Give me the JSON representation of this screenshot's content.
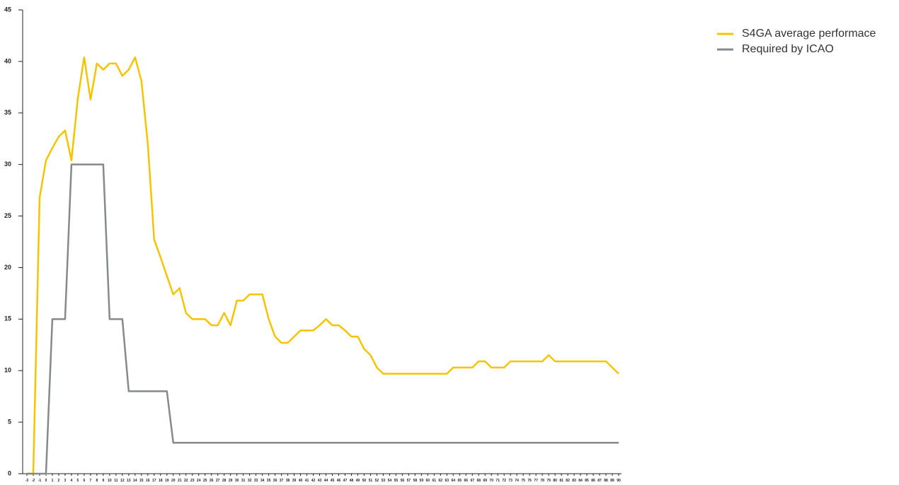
{
  "chart_data": {
    "type": "line",
    "x": [
      -3,
      -2,
      -1,
      0,
      1,
      2,
      3,
      4,
      5,
      6,
      7,
      8,
      9,
      10,
      11,
      12,
      13,
      14,
      15,
      16,
      17,
      18,
      19,
      20,
      21,
      22,
      23,
      24,
      25,
      26,
      27,
      28,
      29,
      30,
      31,
      32,
      33,
      34,
      35,
      36,
      37,
      38,
      39,
      40,
      41,
      42,
      43,
      44,
      45,
      46,
      47,
      48,
      49,
      50,
      51,
      52,
      53,
      54,
      55,
      56,
      57,
      58,
      59,
      60,
      61,
      62,
      63,
      64,
      65,
      66,
      67,
      68,
      69,
      70,
      71,
      72,
      73,
      74,
      75,
      76,
      77,
      78,
      79,
      80,
      81,
      82,
      83,
      84,
      85,
      86,
      87,
      88,
      89,
      90
    ],
    "xticks": [
      -3,
      -2,
      -1,
      0,
      1,
      2,
      3,
      4,
      5,
      6,
      7,
      8,
      9,
      10,
      11,
      12,
      13,
      14,
      15,
      16,
      17,
      18,
      19,
      20,
      21,
      22,
      23,
      24,
      25,
      26,
      27,
      28,
      29,
      30,
      31,
      32,
      33,
      34,
      35,
      36,
      37,
      38,
      39,
      40,
      41,
      42,
      43,
      44,
      45,
      46,
      47,
      48,
      49,
      50,
      51,
      52,
      53,
      54,
      55,
      56,
      57,
      58,
      59,
      60,
      61,
      62,
      63,
      64,
      65,
      66,
      67,
      68,
      69,
      70,
      71,
      72,
      73,
      74,
      75,
      76,
      77,
      78,
      79,
      80,
      81,
      82,
      83,
      84,
      85,
      86,
      87,
      88,
      89,
      90
    ],
    "xlim": [
      -3,
      90
    ],
    "ylim": [
      0,
      45
    ],
    "yticks": [
      0,
      5,
      10,
      15,
      20,
      25,
      30,
      35,
      40,
      45
    ],
    "grid": false,
    "legend": "top-right",
    "series": [
      {
        "name": "S4GA average performace",
        "color": "#f5c400",
        "values": [
          0,
          0,
          26.8,
          30.4,
          31.6,
          32.7,
          33.3,
          30.4,
          36.4,
          40.4,
          36.3,
          39.8,
          39.2,
          39.8,
          39.8,
          38.6,
          39.2,
          40.4,
          38.1,
          32,
          22.7,
          21,
          19.2,
          17.4,
          18,
          15.6,
          15,
          15,
          15,
          14.4,
          14.4,
          15.6,
          14.4,
          16.8,
          16.8,
          17.4,
          17.4,
          17.4,
          15,
          13.3,
          12.7,
          12.7,
          13.3,
          13.9,
          13.9,
          13.9,
          14.4,
          15,
          14.4,
          14.4,
          13.9,
          13.3,
          13.3,
          12.1,
          11.5,
          10.3,
          9.7,
          9.7,
          9.7,
          9.7,
          9.7,
          9.7,
          9.7,
          9.7,
          9.7,
          9.7,
          9.7,
          10.3,
          10.3,
          10.3,
          10.3,
          10.9,
          10.9,
          10.3,
          10.3,
          10.3,
          10.9,
          10.9,
          10.9,
          10.9,
          10.9,
          10.9,
          11.5,
          10.9,
          10.9,
          10.9,
          10.9,
          10.9,
          10.9,
          10.9,
          10.9,
          10.9,
          10.3,
          9.7
        ]
      },
      {
        "name": "Required by ICAO",
        "color": "#86898c",
        "values": [
          0,
          0,
          0,
          0,
          15,
          15,
          15,
          30,
          30,
          30,
          30,
          30,
          30,
          15,
          15,
          15,
          8,
          8,
          8,
          8,
          8,
          8,
          8,
          3,
          3,
          3,
          3,
          3,
          3,
          3,
          3,
          3,
          3,
          3,
          3,
          3,
          3,
          3,
          3,
          3,
          3,
          3,
          3,
          3,
          3,
          3,
          3,
          3,
          3,
          3,
          3,
          3,
          3,
          3,
          3,
          3,
          3,
          3,
          3,
          3,
          3,
          3,
          3,
          3,
          3,
          3,
          3,
          3,
          3,
          3,
          3,
          3,
          3,
          3,
          3,
          3,
          3,
          3,
          3,
          3,
          3,
          3,
          3,
          3,
          3,
          3,
          3,
          3,
          3,
          3,
          3,
          3,
          3,
          3
        ]
      }
    ]
  }
}
